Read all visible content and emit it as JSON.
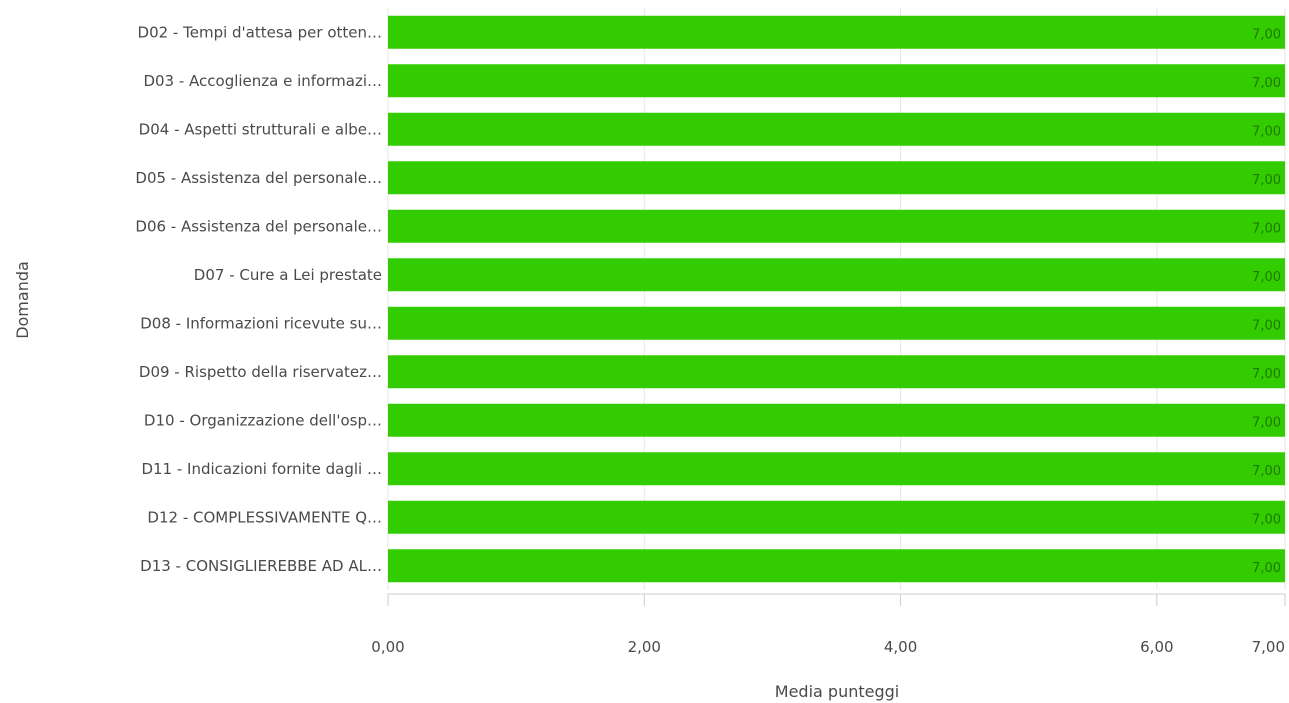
{
  "chart_data": {
    "type": "bar",
    "orientation": "horizontal",
    "xlabel": "Media punteggi",
    "ylabel": "Domanda",
    "xlim": [
      0,
      7
    ],
    "x_ticks": [
      0,
      2,
      4,
      6,
      7
    ],
    "x_tick_labels": [
      "0,00",
      "2,00",
      "4,00",
      "6,00",
      "7,00"
    ],
    "grid": true,
    "bar_color": "#33cc00",
    "categories": [
      "D02 - Tempi d'attesa per otten…",
      "D03 - Accoglienza e informazi…",
      "D04 - Aspetti strutturali e albe…",
      "D05 - Assistenza del personale…",
      "D06 - Assistenza del personale…",
      "D07 - Cure a Lei prestate",
      "D08 - Informazioni ricevute su…",
      "D09 - Rispetto della riservatez…",
      "D10 - Organizzazione dell'osp…",
      "D11 - Indicazioni fornite dagli …",
      "D12 - COMPLESSIVAMENTE Q…",
      "D13 - CONSIGLIEREBBE AD AL…"
    ],
    "values": [
      7,
      7,
      7,
      7,
      7,
      7,
      7,
      7,
      7,
      7,
      7,
      7
    ],
    "value_labels": [
      "7,00",
      "7,00",
      "7,00",
      "7,00",
      "7,00",
      "7,00",
      "7,00",
      "7,00",
      "7,00",
      "7,00",
      "7,00",
      "7,00"
    ]
  }
}
